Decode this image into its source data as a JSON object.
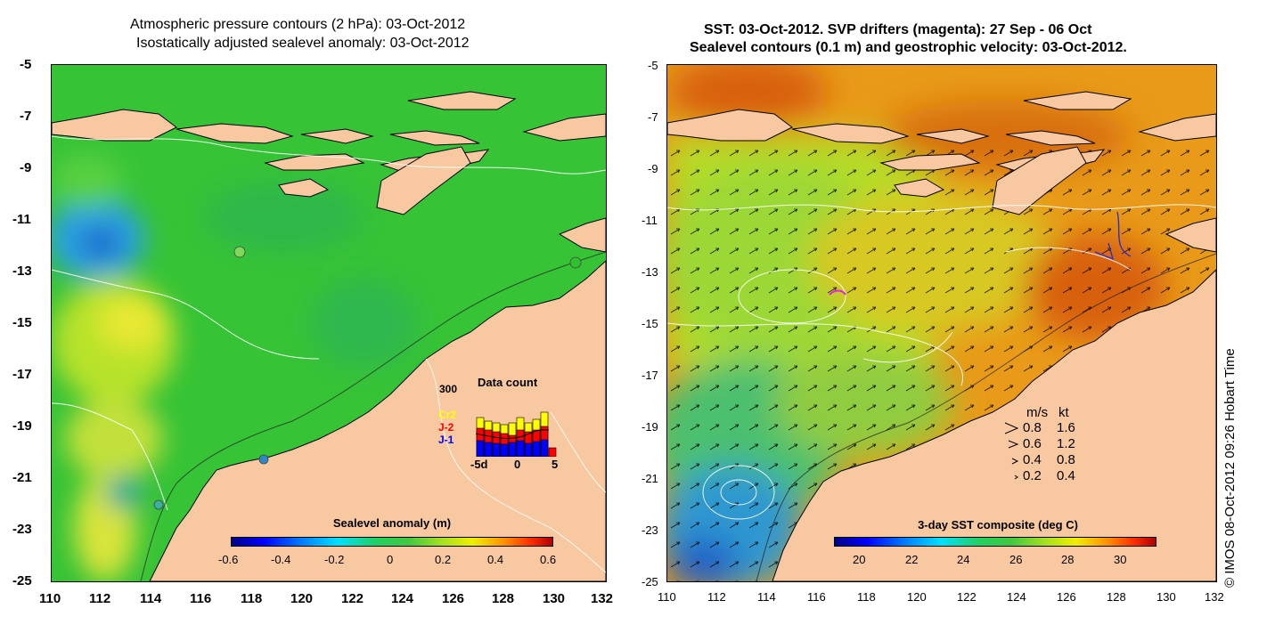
{
  "left_panel": {
    "title_line1": "Atmospheric pressure contours (2 hPa): 03-Oct-2012",
    "title_line2": "Isostatically adjusted sealevel anomaly: 03-Oct-2012",
    "y_ticks": [
      "-5",
      "-7",
      "-9",
      "-11",
      "-13",
      "-15",
      "-17",
      "-19",
      "-21",
      "-23",
      "-25"
    ],
    "x_ticks": [
      "110",
      "112",
      "114",
      "116",
      "118",
      "120",
      "122",
      "124",
      "126",
      "128",
      "130",
      "132"
    ],
    "colorbar": {
      "title": "Sealevel anomaly (m)",
      "ticks": [
        "-0.6",
        "-0.4",
        "-0.2",
        "0",
        "0.2",
        "0.4",
        "0.6"
      ],
      "range": [
        -0.6,
        0.6
      ]
    },
    "data_count": {
      "title": "Data count",
      "max_label": "300",
      "x_labels": [
        "-5d",
        "0",
        "5"
      ],
      "satellites": [
        {
          "name": "Cr2",
          "color": "#ffff00"
        },
        {
          "name": "J-2",
          "color": "#ff0000"
        },
        {
          "name": "J-1",
          "color": "#0000ff"
        }
      ]
    }
  },
  "right_panel": {
    "title_line1": "SST: 03-Oct-2012. SVP drifters (magenta): 27 Sep - 06 Oct",
    "title_line2": "Sealevel contours (0.1 m) and geostrophic velocity: 03-Oct-2012.",
    "y_ticks": [
      "-5",
      "-7",
      "-9",
      "-11",
      "-13",
      "-15",
      "-17",
      "-19",
      "-21",
      "-23",
      "-25"
    ],
    "x_ticks": [
      "110",
      "112",
      "114",
      "116",
      "118",
      "120",
      "122",
      "124",
      "126",
      "128",
      "130",
      "132"
    ],
    "colorbar": {
      "title": "3-day SST composite (deg C)",
      "ticks": [
        "20",
        "22",
        "24",
        "26",
        "28",
        "30"
      ],
      "range": [
        19,
        31.5
      ]
    },
    "velocity_legend": {
      "header_ms": "m/s",
      "header_kt": "kt",
      "rows": [
        {
          "ms": "0.8",
          "kt": "1.6"
        },
        {
          "ms": "0.6",
          "kt": "1.2"
        },
        {
          "ms": "0.4",
          "kt": "0.8"
        },
        {
          "ms": "0.2",
          "kt": "0.4"
        }
      ]
    }
  },
  "credit": "© IMOS 08-Oct-2012 09:26 Hobart Time",
  "colors": {
    "land": "#f8c8a0",
    "ocean_left": "#30c830",
    "ocean_right_warm": "#e89010"
  }
}
